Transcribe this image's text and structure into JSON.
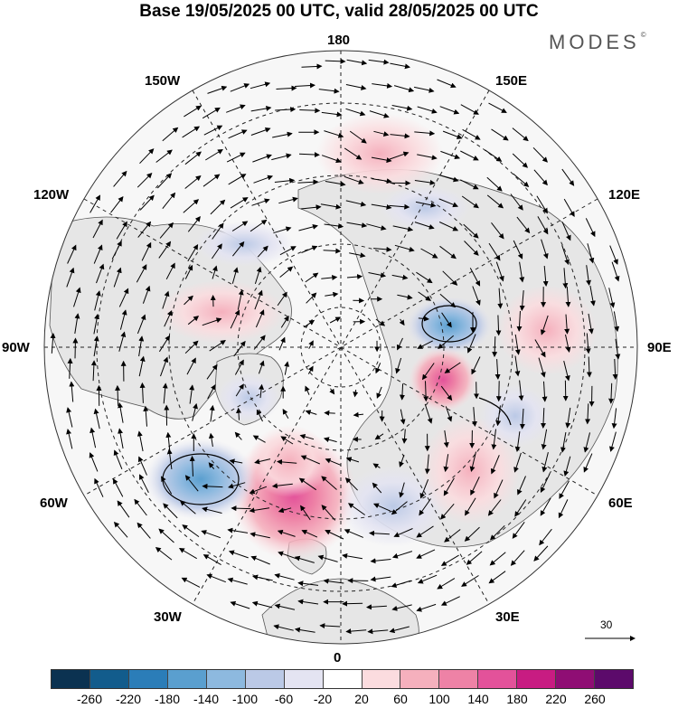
{
  "header": {
    "title": "Base 19/05/2025 00 UTC, valid 28/05/2025 00 UTC",
    "brand": "MODES",
    "brand_mark": "©"
  },
  "map": {
    "projection": "north-polar-stereographic",
    "longitude_labels": {
      "top": "180",
      "bottom": "0",
      "left": "90W",
      "right": "90E",
      "upper_left_1": "150W",
      "upper_left_2": "120W",
      "lower_left_1": "60W",
      "lower_left_2": "30W",
      "upper_right_1": "150E",
      "upper_right_2": "120E",
      "lower_right_1": "60E",
      "lower_right_2": "30E"
    },
    "anomaly_features": [
      {
        "type": "positive",
        "label_value": 140,
        "location": "central North Atlantic"
      },
      {
        "type": "negative",
        "label_value": -140,
        "location": "Labrador Sea / Newfoundland"
      },
      {
        "type": "negative",
        "label_value": -140,
        "location": "central Siberia"
      },
      {
        "type": "positive",
        "label_value": 140,
        "location": "Ural / western Siberia"
      },
      {
        "type": "negative",
        "label_value": -100,
        "location": "northern Europe / Scandinavia"
      },
      {
        "type": "positive",
        "label_value": 100,
        "location": "northern Canada / Beaufort"
      },
      {
        "type": "negative",
        "label_value": -100,
        "location": "Hudson Bay"
      },
      {
        "type": "positive",
        "label_value": 60,
        "location": "Bering Strait / NE Pacific"
      },
      {
        "type": "positive",
        "label_value": 60,
        "location": "central Asia"
      }
    ],
    "colors": {
      "land": "#e8e8e8",
      "ocean": "#ffffff",
      "coast": "#444444",
      "graticule": "#222222"
    }
  },
  "reference_vector": {
    "value": "30"
  },
  "colorbar": {
    "colors": [
      "#0b3251",
      "#125c8c",
      "#2b7db8",
      "#5a9fcf",
      "#8db9df",
      "#bbc9e6",
      "#e4e4f2",
      "#ffffff",
      "#fbdcdf",
      "#f5b0bd",
      "#ee82a6",
      "#e3529a",
      "#c81c82",
      "#8f0e74",
      "#5c0a6b"
    ],
    "ticks": [
      "-260",
      "-220",
      "-180",
      "-140",
      "-100",
      "-60",
      "-20",
      "20",
      "60",
      "100",
      "140",
      "180",
      "220",
      "260"
    ]
  }
}
